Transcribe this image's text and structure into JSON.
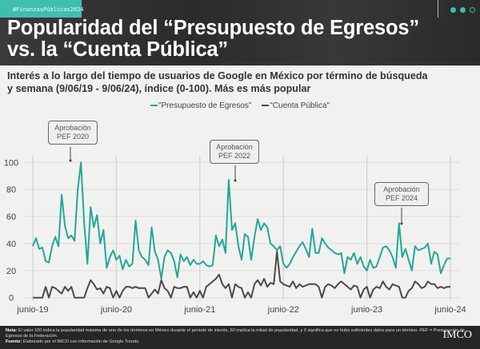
{
  "header": {
    "tag": "#FinanzasPúblicas2024",
    "title_line1": "Popularidad del “Presupuesto de Egresos”",
    "title_line2": "vs. la “Cuenta Pública”"
  },
  "subtitle_line1": "Interés a lo largo del tiempo de usuarios de Google en México por término de búsqueda",
  "subtitle_line2": "y semana (9/06/19 - 9/06/24), índice (0-100). Más es más popular",
  "chart_data": {
    "type": "line",
    "date_range": [
      "2019-06-09",
      "2024-06-09"
    ],
    "ylim": [
      0,
      100
    ],
    "yticks": [
      "0",
      "20",
      "40",
      "60",
      "80",
      "100"
    ],
    "xticks": [
      "junio-19",
      "junio-20",
      "junio-21",
      "junio-22",
      "junio-23",
      "junio-24"
    ],
    "grid": true,
    "legend_position": "top-center",
    "series": [
      {
        "name": "\"Presupuesto de Egresos\"",
        "color": "#22a897",
        "values": [
          38,
          44,
          36,
          37,
          27,
          26,
          38,
          45,
          38,
          76,
          53,
          44,
          46,
          42,
          80,
          100,
          55,
          25,
          67,
          52,
          61,
          40,
          50,
          22,
          30,
          35,
          28,
          31,
          21,
          28,
          23,
          25,
          57,
          35,
          30,
          28,
          24,
          52,
          34,
          28,
          14,
          30,
          35,
          33,
          27,
          15,
          32,
          27,
          30,
          24,
          28,
          25,
          25,
          27,
          24,
          23,
          24,
          46,
          38,
          43,
          33,
          87,
          50,
          55,
          38,
          28,
          47,
          45,
          28,
          45,
          58,
          50,
          55,
          52,
          40,
          38,
          35,
          38,
          25,
          22,
          25,
          30,
          34,
          38,
          41,
          36,
          30,
          51,
          33,
          33,
          44,
          40,
          37,
          35,
          33,
          32,
          33,
          18,
          30,
          28,
          33,
          25,
          30,
          23,
          20,
          28,
          22,
          23,
          30,
          37,
          38,
          35,
          30,
          22,
          55,
          30,
          36,
          28,
          20,
          38,
          35,
          36,
          37,
          40,
          25,
          34,
          32,
          18,
          24,
          29,
          29
        ]
      },
      {
        "name": "\"Cuenta Pública\"",
        "color": "#4a4a4a",
        "values": [
          0,
          0,
          0,
          0,
          8,
          0,
          8,
          7,
          5,
          3,
          8,
          5,
          8,
          0,
          0,
          0,
          0,
          7,
          13,
          10,
          6,
          7,
          3,
          8,
          7,
          0,
          5,
          0,
          5,
          8,
          8,
          7,
          8,
          7,
          7,
          7,
          0,
          3,
          6,
          3,
          13,
          7,
          5,
          0,
          8,
          7,
          7,
          8,
          8,
          0,
          4,
          0,
          5,
          0,
          8,
          10,
          12,
          14,
          17,
          10,
          7,
          10,
          0,
          10,
          8,
          7,
          0,
          4,
          0,
          10,
          13,
          9,
          14,
          8,
          11,
          10,
          34,
          12,
          10,
          9,
          8,
          12,
          7,
          10,
          8,
          9,
          10,
          10,
          10,
          8,
          0,
          8,
          10,
          9,
          7,
          10,
          12,
          10,
          8,
          6,
          9,
          8,
          0,
          6,
          8,
          0,
          6,
          8,
          7,
          12,
          8,
          6,
          10,
          9,
          8,
          0,
          0,
          5,
          7,
          12,
          10,
          7,
          8,
          12,
          10,
          10,
          7,
          8,
          7,
          8,
          8
        ]
      }
    ],
    "annotations": [
      {
        "line1": "Aprobación",
        "line2": "PEF 2020"
      },
      {
        "line1": "Aprobación",
        "line2": "PEF 2022"
      },
      {
        "line1": "Aprobación",
        "line2": "PEF 2024"
      }
    ]
  },
  "footer": {
    "nota_label": "Nota:",
    "nota": " El valor 100 indica la popularidad máxima de uno de los términos en México durante el periodo de interés, 50 implica la mitad de popularidad, y 0 significa que no hubo suficientes datos para un término. PEF = Presupuesto de Egresos de la Federación.",
    "fuente_label": "Fuente:",
    "fuente": " Elaborado por el IMCO con información de Google Trends.",
    "logo": "IMCO"
  }
}
